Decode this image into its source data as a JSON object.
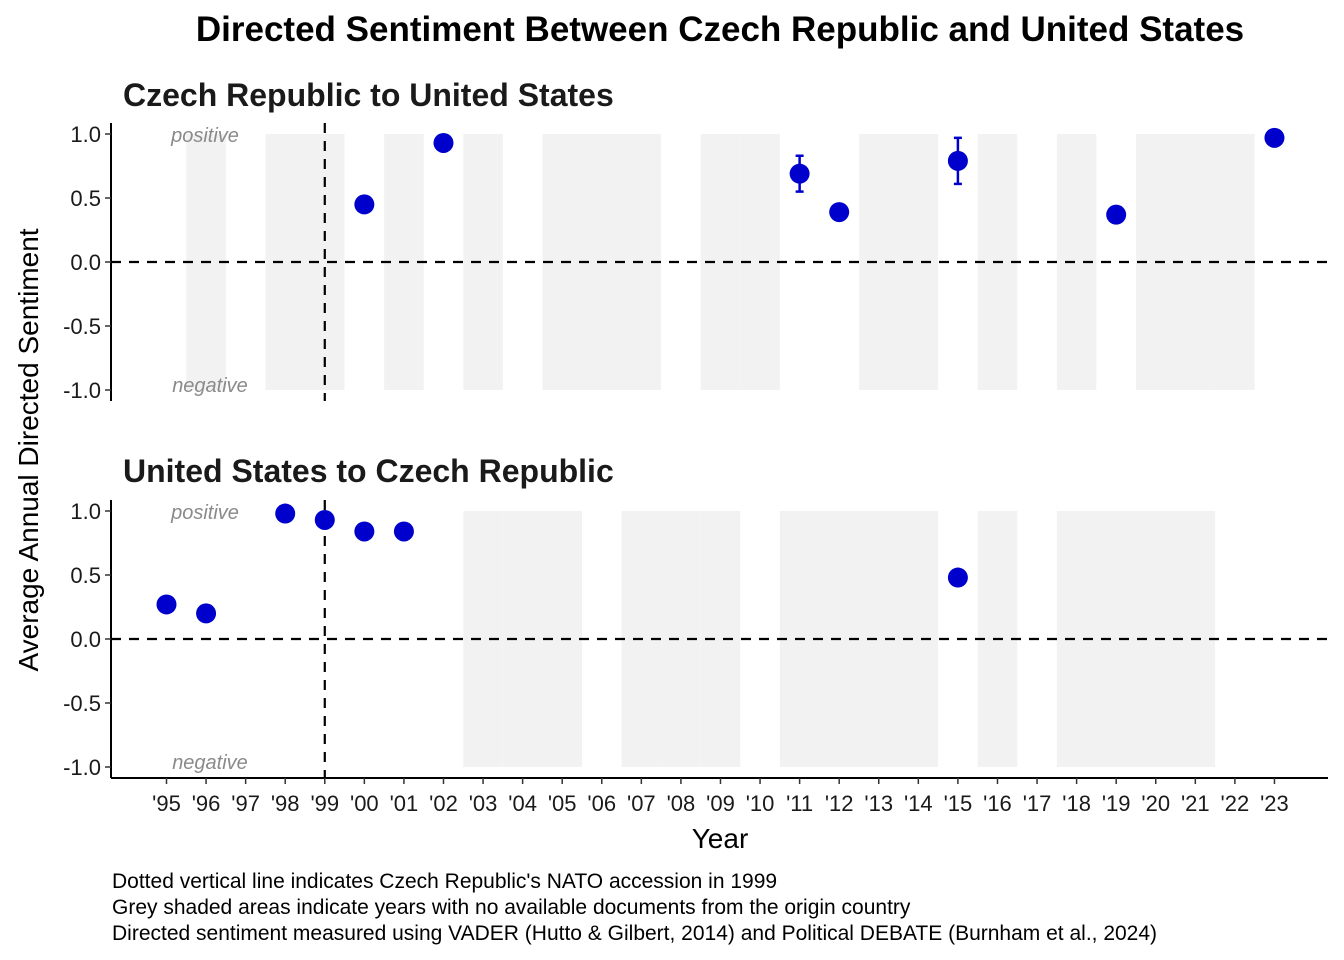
{
  "chart_data": {
    "type": "scatter",
    "title": "Directed Sentiment Between Czech Republic and United States",
    "xlabel": "Year",
    "ylabel": "Average Annual Directed Sentiment",
    "x_ticks": [
      1995,
      1996,
      1997,
      1998,
      1999,
      2000,
      2001,
      2002,
      2003,
      2004,
      2005,
      2006,
      2007,
      2008,
      2009,
      2010,
      2011,
      2012,
      2013,
      2014,
      2015,
      2016,
      2017,
      2018,
      2019,
      2020,
      2021,
      2022,
      2023
    ],
    "x_tick_labels": [
      "'95",
      "'96",
      "'97",
      "'98",
      "'99",
      "'00",
      "'01",
      "'02",
      "'03",
      "'04",
      "'05",
      "'06",
      "'07",
      "'08",
      "'09",
      "'10",
      "'11",
      "'12",
      "'13",
      "'14",
      "'15",
      "'16",
      "'17",
      "'18",
      "'19",
      "'20",
      "'21",
      "'22",
      "'23"
    ],
    "xlim": [
      1995,
      2023
    ],
    "ylim": [
      -1.0,
      1.0
    ],
    "y_ticks": [
      1.0,
      0.5,
      0.0,
      -0.5,
      -1.0
    ],
    "y_tick_labels": [
      "1.0",
      "0.5",
      "0.0",
      "-0.5",
      "-1.0"
    ],
    "zone_labels": {
      "positive": "positive",
      "negative": "negative"
    },
    "reference_lines": {
      "horizontal_y": 0.0,
      "vertical_x": 1999
    },
    "point_color": "#0000cc",
    "shade_color": "#f2f2f2",
    "grid": false,
    "panels": [
      {
        "title": "Czech Republic to United States",
        "points": [
          {
            "x": 2000,
            "y": 0.45
          },
          {
            "x": 2002,
            "y": 0.93
          },
          {
            "x": 2011,
            "y": 0.69,
            "ymin": 0.55,
            "ymax": 0.83
          },
          {
            "x": 2012,
            "y": 0.39
          },
          {
            "x": 2015,
            "y": 0.79,
            "ymin": 0.61,
            "ymax": 0.97
          },
          {
            "x": 2019,
            "y": 0.37
          },
          {
            "x": 2023,
            "y": 0.97
          }
        ],
        "shaded_years": [
          1996,
          1998,
          1999,
          2001,
          2003,
          2005,
          2006,
          2007,
          2009,
          2010,
          2013,
          2014,
          2016,
          2018,
          2020,
          2021,
          2022
        ]
      },
      {
        "title": "United States to Czech Republic",
        "points": [
          {
            "x": 1995,
            "y": 0.27
          },
          {
            "x": 1996,
            "y": 0.2
          },
          {
            "x": 1998,
            "y": 0.98
          },
          {
            "x": 1999,
            "y": 0.93
          },
          {
            "x": 2000,
            "y": 0.84
          },
          {
            "x": 2001,
            "y": 0.84
          }
        ],
        "extra_points": [
          {
            "x": 2015,
            "y": 0.48
          }
        ],
        "shaded_years": [
          2003,
          2004,
          2005,
          2007,
          2008,
          2009,
          2011,
          2012,
          2013,
          2014,
          2016,
          2018,
          2019,
          2020,
          2021
        ]
      }
    ],
    "notes": [
      "Dotted vertical line indicates Czech Republic's NATO accession in 1999",
      "Grey shaded areas indicate years with no available documents from the origin country",
      "Directed sentiment measured using VADER (Hutto & Gilbert, 2014) and Political DEBATE (Burnham et al., 2024)"
    ]
  }
}
